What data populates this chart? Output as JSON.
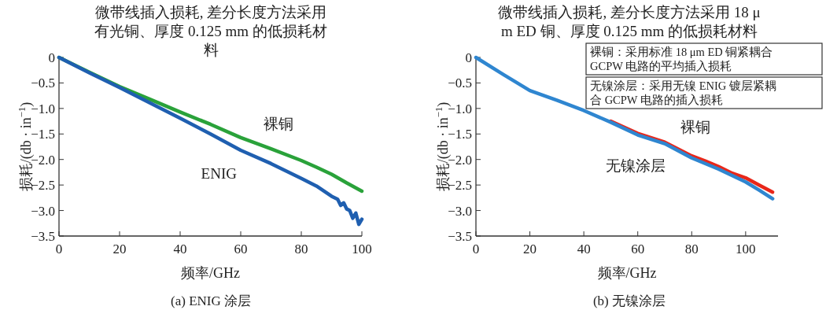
{
  "chart_data": [
    {
      "type": "line",
      "title": "微带线插入损耗, 差分长度方法采用有光铜、厚度 0.125 mm 的低损耗材料",
      "xlabel": "频率/GHz",
      "ylabel": "损耗/(db · in$^{−1}$)",
      "annotations": [
        "(a) ENIG 涂层"
      ],
      "xlim": [
        0,
        100
      ],
      "xticks": [
        0,
        20,
        40,
        60,
        80,
        100
      ],
      "ylim": [
        -3.5,
        0
      ],
      "yticks": [
        {
          "value": 0,
          "label": "0"
        },
        {
          "value": -0.5,
          "label": "−0.5"
        },
        {
          "value": -1,
          "label": "−1.0"
        },
        {
          "value": -1.5,
          "label": "−1.5"
        },
        {
          "value": -2,
          "label": "−2.0"
        },
        {
          "value": -2.5,
          "label": "−2.5"
        },
        {
          "value": -3,
          "label": "−3.0"
        },
        {
          "value": -3.5,
          "label": "−3.5"
        }
      ],
      "legend": false,
      "grid": false,
      "marker": "none",
      "series": [
        {
          "name": "裸铜",
          "color": "#2aa23a",
          "x": [
            0,
            10,
            20,
            30,
            40,
            50,
            60,
            70,
            80,
            85,
            90,
            95,
            100
          ],
          "values": [
            0,
            -0.29,
            -0.57,
            -0.82,
            -1.07,
            -1.31,
            -1.57,
            -1.79,
            -2.02,
            -2.15,
            -2.29,
            -2.46,
            -2.62
          ]
        },
        {
          "name": "ENIG",
          "color": "#1f5fb0",
          "x": [
            0,
            10,
            20,
            30,
            40,
            50,
            60,
            70,
            80,
            85,
            90,
            92,
            93,
            94,
            95,
            96,
            97,
            98,
            99,
            100
          ],
          "values": [
            0,
            -0.3,
            -0.59,
            -0.89,
            -1.19,
            -1.5,
            -1.82,
            -2.08,
            -2.37,
            -2.52,
            -2.72,
            -2.78,
            -2.9,
            -2.85,
            -2.97,
            -3.0,
            -3.15,
            -3.05,
            -3.27,
            -3.17
          ]
        }
      ]
    },
    {
      "type": "line",
      "title": "微带线插入损耗, 差分长度方法采用 18 μm ED 铜、厚度 0.125 mm 的低损耗材料",
      "xlabel": "频率/GHz",
      "ylabel": "损耗/(db · in$^{−1}$)",
      "annotations": [
        "裸铜：采用标准 18 μm ED 铜紧耦合 GCPW 电路的平均插入损耗",
        "无镍涂层：采用无镍 ENIG 镀层紧耦合 GCPW 电路的插入损耗",
        "(b) 无镍涂层"
      ],
      "xlim": [
        0,
        112
      ],
      "xticks": [
        0,
        20,
        40,
        60,
        80,
        100
      ],
      "ylim": [
        -3.5,
        0
      ],
      "yticks": [
        {
          "value": 0,
          "label": "0"
        },
        {
          "value": -0.5,
          "label": "−0.5"
        },
        {
          "value": -1,
          "label": "−1.0"
        },
        {
          "value": -1.5,
          "label": "−1.5"
        },
        {
          "value": -2,
          "label": "−2.0"
        },
        {
          "value": -2.5,
          "label": "−2.5"
        },
        {
          "value": -3,
          "label": "−3.0"
        },
        {
          "value": -3.5,
          "label": "−3.5"
        }
      ],
      "legend": false,
      "grid": false,
      "marker": "none",
      "series": [
        {
          "name": "裸铜",
          "color": "#e8271a",
          "x": [
            50,
            60,
            70,
            80,
            85,
            90,
            95,
            100,
            105,
            110
          ],
          "values": [
            -1.25,
            -1.49,
            -1.66,
            -1.93,
            -2.03,
            -2.14,
            -2.27,
            -2.36,
            -2.5,
            -2.64
          ]
        },
        {
          "name": "无镍涂层",
          "color": "#2f86d0",
          "x": [
            0,
            10,
            20,
            30,
            40,
            50,
            60,
            70,
            80,
            90,
            100,
            105,
            110
          ],
          "values": [
            0,
            -0.33,
            -0.65,
            -0.84,
            -1.04,
            -1.27,
            -1.52,
            -1.69,
            -1.97,
            -2.19,
            -2.44,
            -2.6,
            -2.77
          ]
        }
      ]
    }
  ]
}
